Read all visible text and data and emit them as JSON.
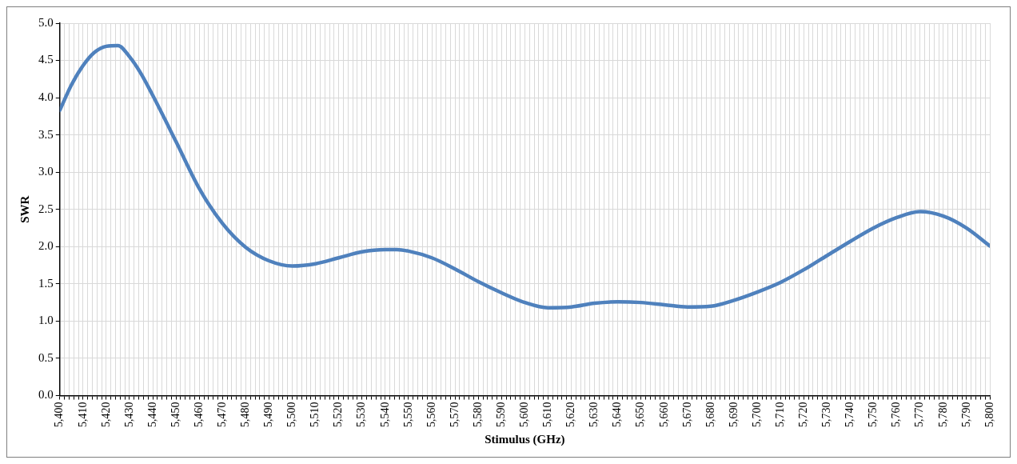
{
  "chart_data": {
    "type": "line",
    "xlabel": "Stimulus (GHz)",
    "ylabel": "SWR",
    "grid": true,
    "legend": false,
    "marker": "none",
    "line_style": "solid",
    "x": [
      5400,
      5405,
      5410,
      5415,
      5420,
      5425,
      5430,
      5435,
      5440,
      5450,
      5460,
      5470,
      5480,
      5490,
      5500,
      5510,
      5520,
      5530,
      5540,
      5545,
      5550,
      5560,
      5570,
      5580,
      5590,
      5600,
      5610,
      5620,
      5630,
      5640,
      5650,
      5660,
      5670,
      5680,
      5690,
      5700,
      5710,
      5720,
      5730,
      5740,
      5750,
      5760,
      5770,
      5780,
      5790,
      5800
    ],
    "series": [
      {
        "color": "#4f81bd",
        "values": [
          3.83,
          4.17,
          4.43,
          4.61,
          4.69,
          4.7,
          4.55,
          4.32,
          4.03,
          3.41,
          2.78,
          2.31,
          1.99,
          1.81,
          1.74,
          1.77,
          1.85,
          1.93,
          1.96,
          1.96,
          1.94,
          1.85,
          1.7,
          1.53,
          1.38,
          1.25,
          1.18,
          1.19,
          1.24,
          1.26,
          1.25,
          1.22,
          1.19,
          1.2,
          1.28,
          1.39,
          1.52,
          1.69,
          1.88,
          2.07,
          2.25,
          2.39,
          2.47,
          2.41,
          2.25,
          2.01
        ]
      }
    ],
    "xlim": [
      5400,
      5800
    ],
    "xticks": [
      {
        "value": 5400,
        "label": "5,400"
      },
      {
        "value": 5402,
        "label": null
      },
      {
        "value": 5404,
        "label": null
      },
      {
        "value": 5406,
        "label": null
      },
      {
        "value": 5408,
        "label": null
      },
      {
        "value": 5410,
        "label": "5,410"
      },
      {
        "value": 5412,
        "label": null
      },
      {
        "value": 5414,
        "label": null
      },
      {
        "value": 5416,
        "label": null
      },
      {
        "value": 5418,
        "label": null
      },
      {
        "value": 5420,
        "label": "5,420"
      },
      {
        "value": 5422,
        "label": null
      },
      {
        "value": 5424,
        "label": null
      },
      {
        "value": 5426,
        "label": null
      },
      {
        "value": 5428,
        "label": null
      },
      {
        "value": 5430,
        "label": "5,430"
      },
      {
        "value": 5432,
        "label": null
      },
      {
        "value": 5434,
        "label": null
      },
      {
        "value": 5436,
        "label": null
      },
      {
        "value": 5438,
        "label": null
      },
      {
        "value": 5440,
        "label": "5,440"
      },
      {
        "value": 5442,
        "label": null
      },
      {
        "value": 5444,
        "label": null
      },
      {
        "value": 5446,
        "label": null
      },
      {
        "value": 5448,
        "label": null
      },
      {
        "value": 5450,
        "label": "5,450"
      },
      {
        "value": 5452,
        "label": null
      },
      {
        "value": 5454,
        "label": null
      },
      {
        "value": 5456,
        "label": null
      },
      {
        "value": 5458,
        "label": null
      },
      {
        "value": 5460,
        "label": "5,460"
      },
      {
        "value": 5462,
        "label": null
      },
      {
        "value": 5464,
        "label": null
      },
      {
        "value": 5466,
        "label": null
      },
      {
        "value": 5468,
        "label": null
      },
      {
        "value": 5470,
        "label": "5,470"
      },
      {
        "value": 5472,
        "label": null
      },
      {
        "value": 5474,
        "label": null
      },
      {
        "value": 5476,
        "label": null
      },
      {
        "value": 5478,
        "label": null
      },
      {
        "value": 5480,
        "label": "5,480"
      },
      {
        "value": 5482,
        "label": null
      },
      {
        "value": 5484,
        "label": null
      },
      {
        "value": 5486,
        "label": null
      },
      {
        "value": 5488,
        "label": null
      },
      {
        "value": 5490,
        "label": "5,490"
      },
      {
        "value": 5492,
        "label": null
      },
      {
        "value": 5494,
        "label": null
      },
      {
        "value": 5496,
        "label": null
      },
      {
        "value": 5498,
        "label": null
      },
      {
        "value": 5500,
        "label": "5,500"
      },
      {
        "value": 5502,
        "label": null
      },
      {
        "value": 5504,
        "label": null
      },
      {
        "value": 5506,
        "label": null
      },
      {
        "value": 5508,
        "label": null
      },
      {
        "value": 5510,
        "label": "5,510"
      },
      {
        "value": 5512,
        "label": null
      },
      {
        "value": 5514,
        "label": null
      },
      {
        "value": 5516,
        "label": null
      },
      {
        "value": 5518,
        "label": null
      },
      {
        "value": 5520,
        "label": "5,520"
      },
      {
        "value": 5522,
        "label": null
      },
      {
        "value": 5524,
        "label": null
      },
      {
        "value": 5526,
        "label": null
      },
      {
        "value": 5528,
        "label": null
      },
      {
        "value": 5530,
        "label": "5,530"
      },
      {
        "value": 5532,
        "label": null
      },
      {
        "value": 5534,
        "label": null
      },
      {
        "value": 5536,
        "label": null
      },
      {
        "value": 5538,
        "label": null
      },
      {
        "value": 5540,
        "label": "5,540"
      },
      {
        "value": 5542,
        "label": null
      },
      {
        "value": 5544,
        "label": null
      },
      {
        "value": 5546,
        "label": null
      },
      {
        "value": 5548,
        "label": null
      },
      {
        "value": 5550,
        "label": "5,550"
      },
      {
        "value": 5552,
        "label": null
      },
      {
        "value": 5554,
        "label": null
      },
      {
        "value": 5556,
        "label": null
      },
      {
        "value": 5558,
        "label": null
      },
      {
        "value": 5560,
        "label": "5,560"
      },
      {
        "value": 5562,
        "label": null
      },
      {
        "value": 5564,
        "label": null
      },
      {
        "value": 5566,
        "label": null
      },
      {
        "value": 5568,
        "label": null
      },
      {
        "value": 5570,
        "label": "5,570"
      },
      {
        "value": 5572,
        "label": null
      },
      {
        "value": 5574,
        "label": null
      },
      {
        "value": 5576,
        "label": null
      },
      {
        "value": 5578,
        "label": null
      },
      {
        "value": 5580,
        "label": "5,580"
      },
      {
        "value": 5582,
        "label": null
      },
      {
        "value": 5584,
        "label": null
      },
      {
        "value": 5586,
        "label": null
      },
      {
        "value": 5588,
        "label": null
      },
      {
        "value": 5590,
        "label": "5,590"
      },
      {
        "value": 5592,
        "label": null
      },
      {
        "value": 5594,
        "label": null
      },
      {
        "value": 5596,
        "label": null
      },
      {
        "value": 5598,
        "label": null
      },
      {
        "value": 5600,
        "label": "5,600"
      },
      {
        "value": 5602,
        "label": null
      },
      {
        "value": 5604,
        "label": null
      },
      {
        "value": 5606,
        "label": null
      },
      {
        "value": 5608,
        "label": null
      },
      {
        "value": 5610,
        "label": "5,610"
      },
      {
        "value": 5612,
        "label": null
      },
      {
        "value": 5614,
        "label": null
      },
      {
        "value": 5616,
        "label": null
      },
      {
        "value": 5618,
        "label": null
      },
      {
        "value": 5620,
        "label": "5,620"
      },
      {
        "value": 5622,
        "label": null
      },
      {
        "value": 5624,
        "label": null
      },
      {
        "value": 5626,
        "label": null
      },
      {
        "value": 5628,
        "label": null
      },
      {
        "value": 5630,
        "label": "5,630"
      },
      {
        "value": 5632,
        "label": null
      },
      {
        "value": 5634,
        "label": null
      },
      {
        "value": 5636,
        "label": null
      },
      {
        "value": 5638,
        "label": null
      },
      {
        "value": 5640,
        "label": "5,640"
      },
      {
        "value": 5642,
        "label": null
      },
      {
        "value": 5644,
        "label": null
      },
      {
        "value": 5646,
        "label": null
      },
      {
        "value": 5648,
        "label": null
      },
      {
        "value": 5650,
        "label": "5,650"
      },
      {
        "value": 5652,
        "label": null
      },
      {
        "value": 5654,
        "label": null
      },
      {
        "value": 5656,
        "label": null
      },
      {
        "value": 5658,
        "label": null
      },
      {
        "value": 5660,
        "label": "5,660"
      },
      {
        "value": 5662,
        "label": null
      },
      {
        "value": 5664,
        "label": null
      },
      {
        "value": 5666,
        "label": null
      },
      {
        "value": 5668,
        "label": null
      },
      {
        "value": 5670,
        "label": "5,670"
      },
      {
        "value": 5672,
        "label": null
      },
      {
        "value": 5674,
        "label": null
      },
      {
        "value": 5676,
        "label": null
      },
      {
        "value": 5678,
        "label": null
      },
      {
        "value": 5680,
        "label": "5,680"
      },
      {
        "value": 5682,
        "label": null
      },
      {
        "value": 5684,
        "label": null
      },
      {
        "value": 5686,
        "label": null
      },
      {
        "value": 5688,
        "label": null
      },
      {
        "value": 5690,
        "label": "5,690"
      },
      {
        "value": 5692,
        "label": null
      },
      {
        "value": 5694,
        "label": null
      },
      {
        "value": 5696,
        "label": null
      },
      {
        "value": 5698,
        "label": null
      },
      {
        "value": 5700,
        "label": "5,700"
      },
      {
        "value": 5702,
        "label": null
      },
      {
        "value": 5704,
        "label": null
      },
      {
        "value": 5706,
        "label": null
      },
      {
        "value": 5708,
        "label": null
      },
      {
        "value": 5710,
        "label": "5,710"
      },
      {
        "value": 5712,
        "label": null
      },
      {
        "value": 5714,
        "label": null
      },
      {
        "value": 5716,
        "label": null
      },
      {
        "value": 5718,
        "label": null
      },
      {
        "value": 5720,
        "label": "5,720"
      },
      {
        "value": 5722,
        "label": null
      },
      {
        "value": 5724,
        "label": null
      },
      {
        "value": 5726,
        "label": null
      },
      {
        "value": 5728,
        "label": null
      },
      {
        "value": 5730,
        "label": "5,730"
      },
      {
        "value": 5732,
        "label": null
      },
      {
        "value": 5734,
        "label": null
      },
      {
        "value": 5736,
        "label": null
      },
      {
        "value": 5738,
        "label": null
      },
      {
        "value": 5740,
        "label": "5,740"
      },
      {
        "value": 5742,
        "label": null
      },
      {
        "value": 5744,
        "label": null
      },
      {
        "value": 5746,
        "label": null
      },
      {
        "value": 5748,
        "label": null
      },
      {
        "value": 5750,
        "label": "5,750"
      },
      {
        "value": 5752,
        "label": null
      },
      {
        "value": 5754,
        "label": null
      },
      {
        "value": 5756,
        "label": null
      },
      {
        "value": 5758,
        "label": null
      },
      {
        "value": 5760,
        "label": "5,760"
      },
      {
        "value": 5762,
        "label": null
      },
      {
        "value": 5764,
        "label": null
      },
      {
        "value": 5766,
        "label": null
      },
      {
        "value": 5768,
        "label": null
      },
      {
        "value": 5770,
        "label": "5,770"
      },
      {
        "value": 5772,
        "label": null
      },
      {
        "value": 5774,
        "label": null
      },
      {
        "value": 5776,
        "label": null
      },
      {
        "value": 5778,
        "label": null
      },
      {
        "value": 5780,
        "label": "5,780"
      },
      {
        "value": 5782,
        "label": null
      },
      {
        "value": 5784,
        "label": null
      },
      {
        "value": 5786,
        "label": null
      },
      {
        "value": 5788,
        "label": null
      },
      {
        "value": 5790,
        "label": "5,790"
      },
      {
        "value": 5792,
        "label": null
      },
      {
        "value": 5794,
        "label": null
      },
      {
        "value": 5796,
        "label": null
      },
      {
        "value": 5798,
        "label": null
      },
      {
        "value": 5800,
        "label": "5,800"
      }
    ],
    "ylim": [
      0,
      5
    ],
    "yticks": [
      {
        "value": 0,
        "label": "0.0"
      },
      {
        "value": 0.5,
        "label": "0.5"
      },
      {
        "value": 1,
        "label": "1.0"
      },
      {
        "value": 1.5,
        "label": "1.5"
      },
      {
        "value": 2,
        "label": "2.0"
      },
      {
        "value": 2.5,
        "label": "2.5"
      },
      {
        "value": 3,
        "label": "3.0"
      },
      {
        "value": 3.5,
        "label": "3.5"
      },
      {
        "value": 4,
        "label": "4.0"
      },
      {
        "value": 4.5,
        "label": "4.5"
      },
      {
        "value": 5,
        "label": "5.0"
      }
    ]
  }
}
